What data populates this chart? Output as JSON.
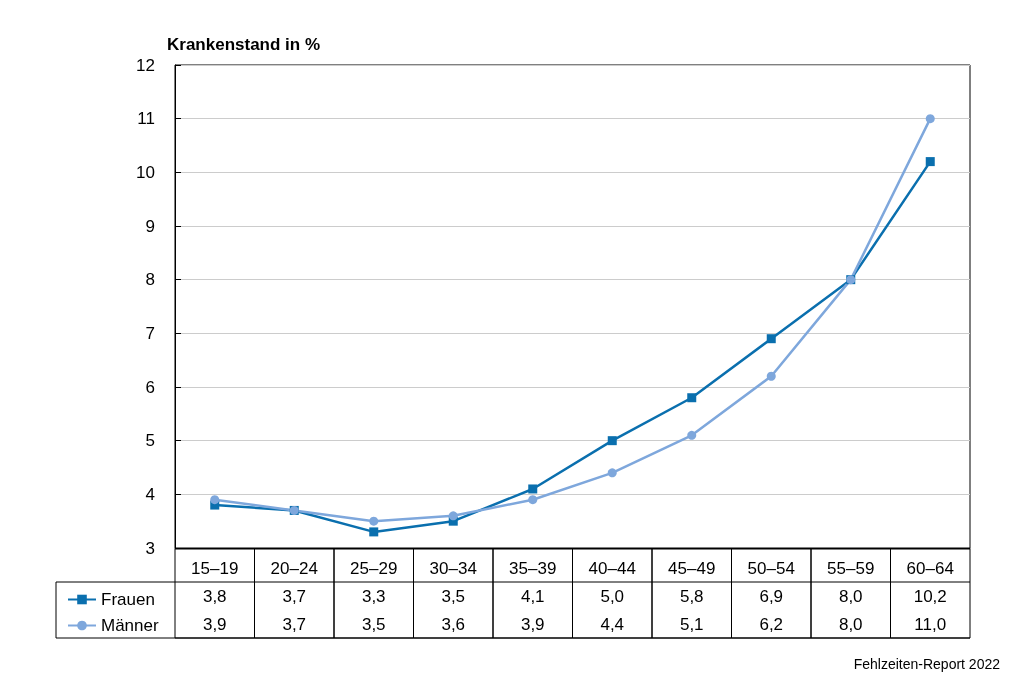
{
  "chart_data": {
    "type": "line",
    "ylabel": "Krankenstand in %",
    "categories": [
      "15–19",
      "20–24",
      "25–29",
      "30–34",
      "35–39",
      "40–44",
      "45–49",
      "50–54",
      "55–59",
      "60–64"
    ],
    "series": [
      {
        "name": "Frauen",
        "color": "#0a6fae",
        "marker": "square",
        "values": [
          3.8,
          3.7,
          3.3,
          3.5,
          4.1,
          5.0,
          5.8,
          6.9,
          8.0,
          10.2
        ],
        "value_labels": [
          "3,8",
          "3,7",
          "3,3",
          "3,5",
          "4,1",
          "5,0",
          "5,8",
          "6,9",
          "8,0",
          "10,2"
        ]
      },
      {
        "name": "Männer",
        "color": "#7ea7dc",
        "marker": "circle",
        "values": [
          3.9,
          3.7,
          3.5,
          3.6,
          3.9,
          4.4,
          5.1,
          6.2,
          8.0,
          11.0
        ],
        "value_labels": [
          "3,9",
          "3,7",
          "3,5",
          "3,6",
          "3,9",
          "4,4",
          "5,1",
          "6,2",
          "8,0",
          "11,0"
        ]
      }
    ],
    "ylim": [
      3,
      12
    ],
    "yticks": [
      3,
      4,
      5,
      6,
      7,
      8,
      9,
      10,
      11,
      12
    ],
    "grid": "y",
    "legend": "bottom left",
    "line_style": "solid",
    "annotations": [
      "Fehlzeiten-Report 2022"
    ]
  }
}
